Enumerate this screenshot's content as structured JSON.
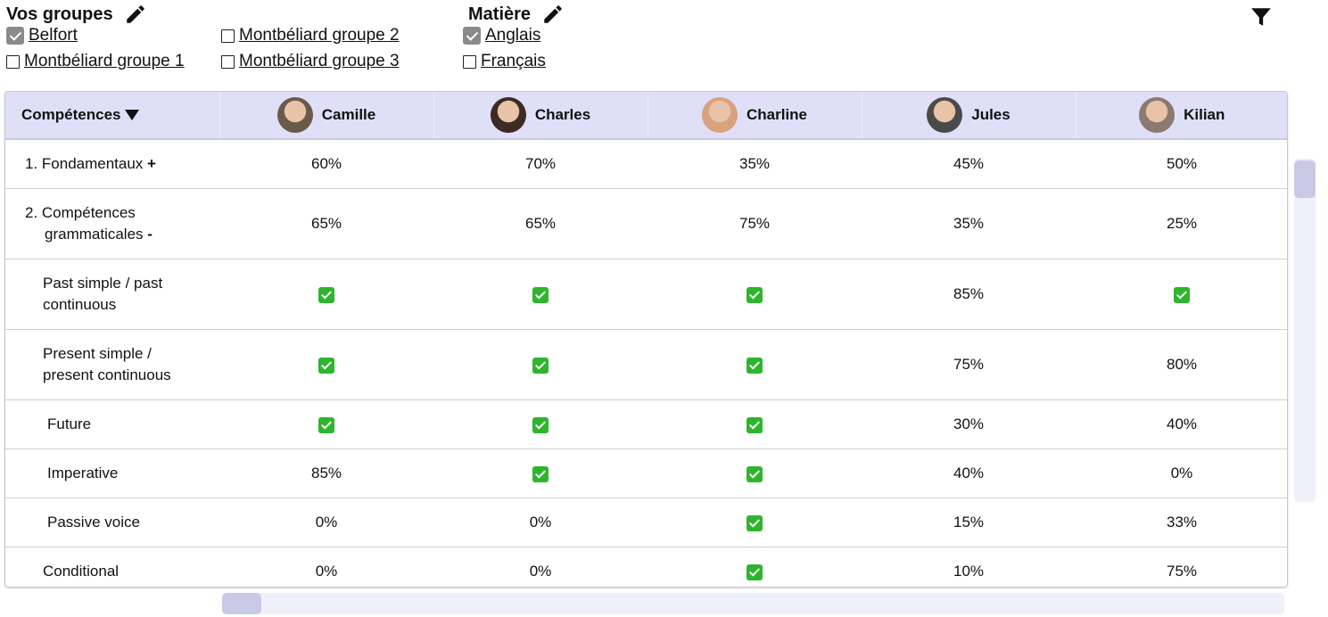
{
  "header": {
    "groups": {
      "title": "Vos groupes",
      "options": [
        {
          "label": "Belfort",
          "checked": true
        },
        {
          "label": "Montbéliard groupe 1",
          "checked": false
        },
        {
          "label": "Montbéliard groupe 2",
          "checked": false
        },
        {
          "label": "Montbéliard groupe 3",
          "checked": false
        }
      ]
    },
    "subject": {
      "title": "Matière",
      "options": [
        {
          "label": "Anglais",
          "checked": true
        },
        {
          "label": "Français",
          "checked": false
        }
      ]
    }
  },
  "table": {
    "first_header": "Compétences",
    "columns": [
      "Camille",
      "Charles",
      "Charline",
      "Jules",
      "Kilian"
    ],
    "rows": [
      {
        "label": "1. Fondamentaux",
        "toggle": "+",
        "cells": [
          "60%",
          "70%",
          "35%",
          "45%",
          "50%"
        ]
      },
      {
        "label": "2. Compétences grammaticales",
        "toggle": "-",
        "cells": [
          "65%",
          "65%",
          "75%",
          "35%",
          "25%"
        ]
      },
      {
        "label": "Past simple / past continuous",
        "cells": [
          "✅",
          "✅",
          "✅",
          "85%",
          "✅"
        ]
      },
      {
        "label": "Present simple / present continuous",
        "cells": [
          "✅",
          "✅",
          "✅",
          "75%",
          "80%"
        ]
      },
      {
        "label": "Future",
        "cells": [
          "✅",
          "✅",
          "✅",
          "30%",
          "40%"
        ]
      },
      {
        "label": "Imperative",
        "cells": [
          "85%",
          "✅",
          "✅",
          "40%",
          "0%"
        ]
      },
      {
        "label": "Passive voice",
        "cells": [
          "0%",
          "0%",
          "✅",
          "15%",
          "33%"
        ]
      },
      {
        "label": "Conditional",
        "cells": [
          "0%",
          "0%",
          "✅",
          "10%",
          "75%"
        ]
      }
    ]
  }
}
